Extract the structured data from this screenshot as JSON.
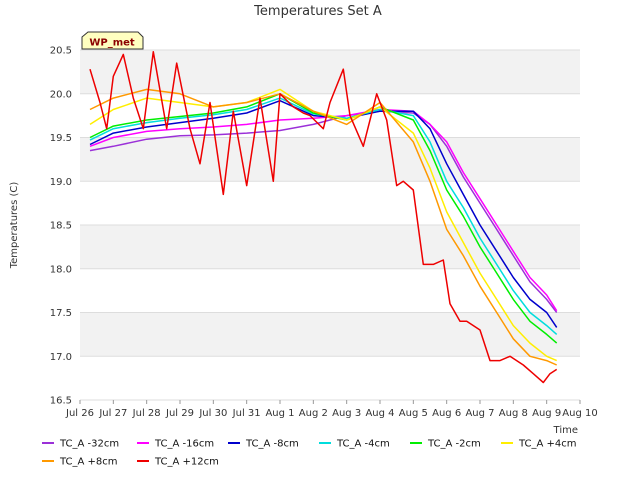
{
  "chart_data": {
    "type": "line",
    "title": "Temperatures Set A",
    "xlabel": "Time",
    "ylabel": "Temperatures (C)",
    "badge": "WP_met",
    "ylim": [
      16.5,
      20.5
    ],
    "xlim": [
      0,
      15
    ],
    "yticks": [
      16.5,
      17.0,
      17.5,
      18.0,
      18.5,
      19.0,
      19.5,
      20.0,
      20.5
    ],
    "ytick_labels": [
      "16.5",
      "17.0",
      "17.5",
      "18.0",
      "18.5",
      "19.0",
      "19.5",
      "20.0",
      "20.5"
    ],
    "xticks": [
      0,
      1,
      2,
      3,
      4,
      5,
      6,
      7,
      8,
      9,
      10,
      11,
      12,
      13,
      14,
      15
    ],
    "xtick_labels": [
      "Jul 26",
      "Jul 27",
      "Jul 28",
      "Jul 29",
      "Jul 30",
      "Jul 31",
      "Aug 1",
      "Aug 2",
      "Aug 3",
      "Aug 4",
      "Aug 5",
      "Aug 6",
      "Aug 7",
      "Aug 8",
      "Aug 9",
      "Aug 10"
    ],
    "series": [
      {
        "name": "TC_A -32cm",
        "color": "#9b30d8",
        "x": [
          0.3,
          1,
          2,
          3,
          4,
          5,
          6,
          7,
          8,
          9,
          10,
          10.5,
          11,
          11.5,
          12,
          12.5,
          13,
          13.5,
          14,
          14.3
        ],
        "y": [
          19.35,
          19.4,
          19.48,
          19.52,
          19.53,
          19.55,
          19.58,
          19.65,
          19.75,
          19.8,
          19.78,
          19.65,
          19.4,
          19.05,
          18.75,
          18.45,
          18.15,
          17.85,
          17.65,
          17.5
        ]
      },
      {
        "name": "TC_A -16cm",
        "color": "#ff00ff",
        "x": [
          0.3,
          1,
          2,
          3,
          4,
          5,
          6,
          7,
          8,
          9,
          10,
          10.5,
          11,
          11.5,
          12,
          12.5,
          13,
          13.5,
          14,
          14.3
        ],
        "y": [
          19.4,
          19.5,
          19.57,
          19.6,
          19.62,
          19.65,
          19.7,
          19.72,
          19.75,
          19.82,
          19.8,
          19.65,
          19.45,
          19.1,
          18.8,
          18.5,
          18.2,
          17.9,
          17.7,
          17.52
        ]
      },
      {
        "name": "TC_A -8cm",
        "color": "#0000cc",
        "x": [
          0.3,
          1,
          2,
          3,
          4,
          5,
          6,
          7,
          8,
          9,
          10,
          10.5,
          11,
          11.5,
          12,
          12.5,
          13,
          13.5,
          14,
          14.3
        ],
        "y": [
          19.42,
          19.55,
          19.62,
          19.67,
          19.72,
          19.78,
          19.92,
          19.75,
          19.72,
          19.8,
          19.8,
          19.6,
          19.2,
          18.85,
          18.5,
          18.2,
          17.9,
          17.65,
          17.5,
          17.33
        ]
      },
      {
        "name": "TC_A -4cm",
        "color": "#00dddd",
        "x": [
          0.3,
          1,
          2,
          3,
          4,
          5,
          6,
          7,
          8,
          9,
          10,
          10.5,
          11,
          11.5,
          12,
          12.5,
          13,
          13.5,
          14,
          14.3
        ],
        "y": [
          19.47,
          19.6,
          19.67,
          19.72,
          19.76,
          19.82,
          19.95,
          19.77,
          19.72,
          19.82,
          19.75,
          19.45,
          19.0,
          18.7,
          18.35,
          18.05,
          17.75,
          17.5,
          17.35,
          17.25
        ]
      },
      {
        "name": "TC_A -2cm",
        "color": "#00ee00",
        "x": [
          0.3,
          1,
          2,
          3,
          4,
          5,
          6,
          7,
          8,
          9,
          10,
          10.5,
          11,
          11.5,
          12,
          12.5,
          13,
          13.5,
          14,
          14.3
        ],
        "y": [
          19.5,
          19.63,
          19.7,
          19.74,
          19.78,
          19.85,
          20.0,
          19.78,
          19.7,
          19.85,
          19.7,
          19.35,
          18.9,
          18.6,
          18.25,
          17.95,
          17.65,
          17.4,
          17.25,
          17.15
        ]
      },
      {
        "name": "TC_A +4cm",
        "color": "#ffee00",
        "x": [
          0.3,
          1,
          2,
          3,
          4,
          5,
          6,
          7,
          8,
          9,
          10,
          10.5,
          11,
          11.5,
          12,
          12.5,
          13,
          13.5,
          14,
          14.3
        ],
        "y": [
          19.65,
          19.82,
          19.95,
          19.9,
          19.85,
          19.9,
          20.05,
          19.8,
          19.7,
          19.85,
          19.55,
          19.15,
          18.65,
          18.3,
          17.95,
          17.65,
          17.35,
          17.15,
          17.0,
          16.95
        ]
      },
      {
        "name": "TC_A +8cm",
        "color": "#ff9900",
        "x": [
          0.3,
          1,
          2,
          3,
          4,
          5,
          6,
          7,
          8,
          9,
          10,
          10.5,
          11,
          11.5,
          12,
          12.5,
          13,
          13.5,
          14,
          14.3
        ],
        "y": [
          19.82,
          19.95,
          20.05,
          20.0,
          19.85,
          19.9,
          20.0,
          19.8,
          19.65,
          19.9,
          19.45,
          19.0,
          18.45,
          18.15,
          17.8,
          17.5,
          17.2,
          17.0,
          16.95,
          16.9
        ]
      },
      {
        "name": "TC_A +12cm",
        "color": "#ee0000",
        "x": [
          0.3,
          0.6,
          0.8,
          1.0,
          1.3,
          1.6,
          1.9,
          2.2,
          2.6,
          2.9,
          3.3,
          3.6,
          3.9,
          4.3,
          4.6,
          5.0,
          5.4,
          5.8,
          6.0,
          6.4,
          6.7,
          6.9,
          7.3,
          7.5,
          7.9,
          8.1,
          8.5,
          8.9,
          9.2,
          9.5,
          9.7,
          10.0,
          10.3,
          10.6,
          10.9,
          11.1,
          11.4,
          11.6,
          12.0,
          12.3,
          12.6,
          12.9,
          13.3,
          13.6,
          13.9,
          14.1,
          14.3
        ],
        "y": [
          20.28,
          19.9,
          19.6,
          20.2,
          20.45,
          19.95,
          19.6,
          20.48,
          19.6,
          20.35,
          19.6,
          19.2,
          19.9,
          18.85,
          19.8,
          18.95,
          19.95,
          19.0,
          20.0,
          19.85,
          19.78,
          19.75,
          19.6,
          19.9,
          20.28,
          19.75,
          19.4,
          20.0,
          19.7,
          18.95,
          19.0,
          18.9,
          18.05,
          18.05,
          18.1,
          17.6,
          17.4,
          17.4,
          17.3,
          16.95,
          16.95,
          17.0,
          16.9,
          16.8,
          16.7,
          16.8,
          16.85
        ]
      }
    ]
  }
}
